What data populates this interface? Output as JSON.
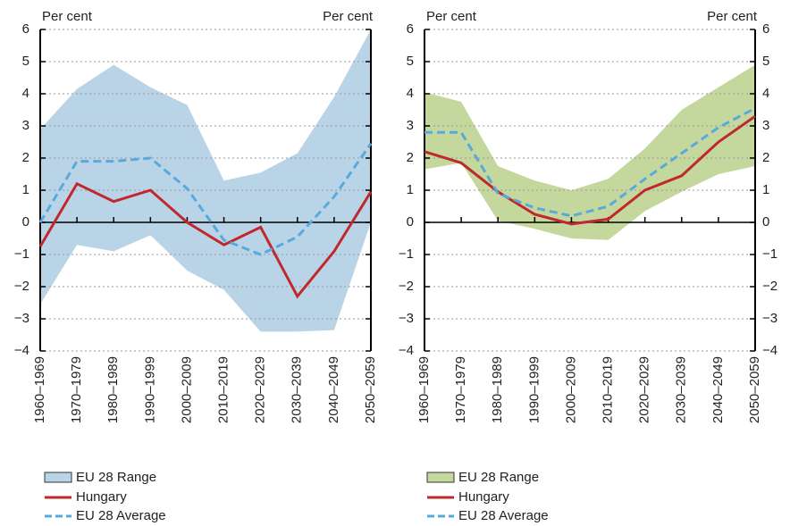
{
  "chart_data": [
    {
      "type": "range-line",
      "ylabel": "Per cent",
      "ylabel_right": "Per cent",
      "categories": [
        "1960–1969",
        "1970–1979",
        "1980–1989",
        "1990–1999",
        "2000–2009",
        "2010–2019",
        "2020–2029",
        "2030–2039",
        "2040–2049",
        "2050–2059"
      ],
      "range": {
        "name": "EU 28 Range",
        "color": "#b9d4e7",
        "lower": [
          -2.55,
          -0.7,
          -0.9,
          -0.4,
          -1.5,
          -2.1,
          -3.4,
          -3.4,
          -3.35,
          0
        ],
        "upper": [
          2.9,
          4.15,
          4.9,
          4.2,
          3.65,
          1.3,
          1.55,
          2.15,
          3.9,
          6.0
        ]
      },
      "series": [
        {
          "name": "Hungary",
          "color": "#c0282e",
          "values": [
            -0.75,
            1.2,
            0.65,
            1.0,
            0.0,
            -0.7,
            -0.15,
            -2.3,
            -0.9,
            0.95
          ]
        },
        {
          "name": "EU 28 Average",
          "color": "#5aa9dc",
          "dashed": true,
          "values": [
            0.0,
            1.9,
            1.9,
            2.0,
            1.05,
            -0.55,
            -1.0,
            -0.45,
            0.8,
            2.45
          ]
        }
      ],
      "ylim": [
        -4,
        6
      ],
      "yticks": [
        {
          "value": -4,
          "label": "−4"
        },
        {
          "value": -3,
          "label": "−3"
        },
        {
          "value": -2,
          "label": "−2"
        },
        {
          "value": -1,
          "label": "−1"
        },
        0,
        1,
        2,
        3,
        4,
        5,
        6
      ],
      "grid": true,
      "tick_labels": [
        "left"
      ]
    },
    {
      "type": "range-line",
      "ylabel": "Per cent",
      "ylabel_right": "Per cent",
      "categories": [
        "1960–1969",
        "1970–1979",
        "1980–1989",
        "1990–1999",
        "2000–2009",
        "2010–2019",
        "2020–2029",
        "2030–2039",
        "2040–2049",
        "2050–2059"
      ],
      "range": {
        "name": "EU 28 Range",
        "color": "#c4d89d",
        "lower": [
          1.65,
          1.85,
          0.05,
          -0.2,
          -0.5,
          -0.55,
          0.35,
          0.95,
          1.5,
          1.75
        ],
        "upper": [
          4.05,
          3.75,
          1.75,
          1.3,
          1.0,
          1.35,
          2.3,
          3.5,
          4.2,
          4.9
        ]
      },
      "series": [
        {
          "name": "Hungary",
          "color": "#c0282e",
          "values": [
            2.2,
            1.85,
            0.95,
            0.25,
            -0.05,
            0.1,
            1.0,
            1.45,
            2.5,
            3.3
          ]
        },
        {
          "name": "EU 28 Average",
          "color": "#5aa9dc",
          "dashed": true,
          "values": [
            2.8,
            2.8,
            0.9,
            0.45,
            0.2,
            0.5,
            1.35,
            2.15,
            2.95,
            3.55
          ]
        }
      ],
      "ylim": [
        -4,
        6
      ],
      "yticks": [
        {
          "value": -4,
          "label": "−4"
        },
        {
          "value": -3,
          "label": "−3"
        },
        {
          "value": -2,
          "label": "−2"
        },
        {
          "value": -1,
          "label": "−1"
        },
        0,
        1,
        2,
        3,
        4,
        5,
        6
      ],
      "grid": true,
      "tick_labels": [
        "left",
        "right"
      ]
    }
  ]
}
